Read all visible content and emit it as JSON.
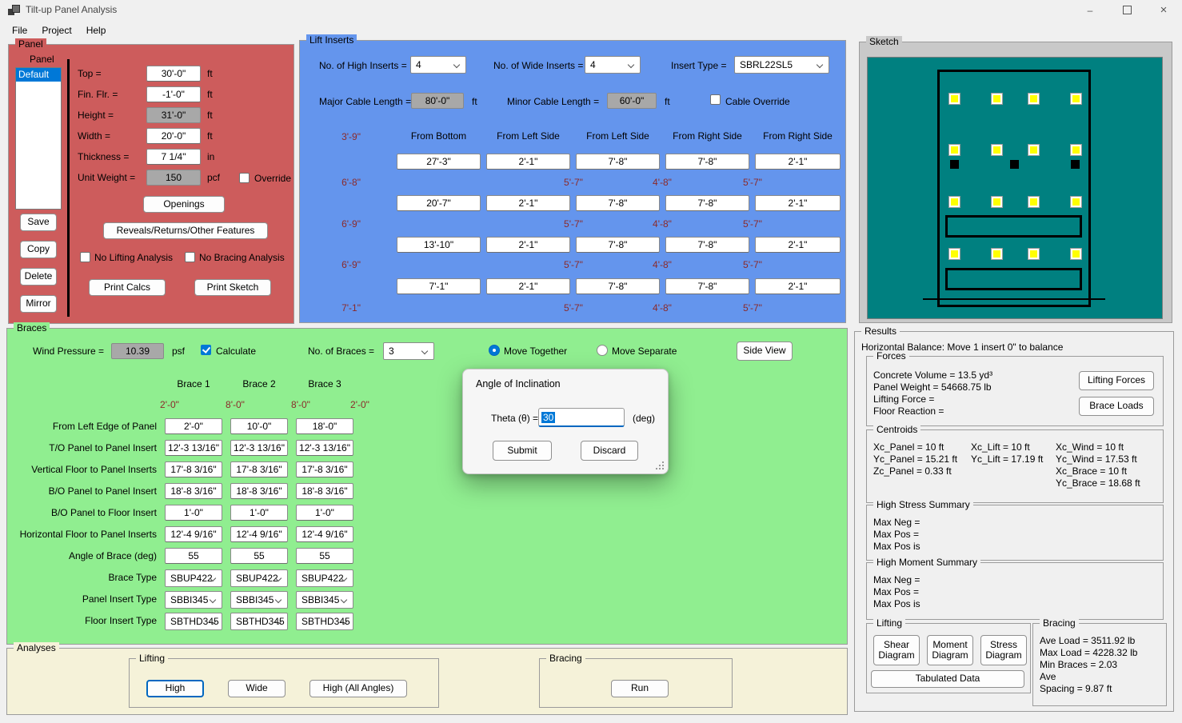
{
  "colors": {
    "panel_red": "#cd5c5c",
    "lift_blue": "#6495ed",
    "braces_green": "#90ee90",
    "sketch_teal": "#008080",
    "sketch_silver": "#c9c9c9",
    "analyses_beige": "#f5f2d9",
    "accent": "#0078d7",
    "dim_red": "#8b2a2a"
  },
  "window": {
    "title": "Tilt-up Panel Analysis",
    "menu": [
      "File",
      "Project",
      "Help"
    ]
  },
  "panel": {
    "group_label": "Panel",
    "list_header": "Panel",
    "list_selected": "Default",
    "rows": [
      {
        "label": "Top =",
        "value": "30'-0\"",
        "unit": "ft",
        "readonly": false
      },
      {
        "label": "Fin. Flr. =",
        "value": "-1'-0\"",
        "unit": "ft",
        "readonly": false
      },
      {
        "label": "Height =",
        "value": "31'-0\"",
        "unit": "ft",
        "readonly": true
      },
      {
        "label": "Width =",
        "value": "20'-0\"",
        "unit": "ft",
        "readonly": false
      },
      {
        "label": "Thickness =",
        "value": "7 1/4\"",
        "unit": "in",
        "readonly": false
      },
      {
        "label": "Unit Weight =",
        "value": "150",
        "unit": "pcf",
        "readonly": true
      }
    ],
    "override_label": "Override",
    "side_buttons": [
      "Save",
      "Copy",
      "Delete",
      "Mirror"
    ],
    "openings_button": "Openings",
    "reveals_button": "Reveals/Returns/Other Features",
    "no_lifting_label": "No Lifting Analysis",
    "no_bracing_label": "No Bracing Analysis",
    "print_calcs_button": "Print Calcs",
    "print_sketch_button": "Print Sketch"
  },
  "lift_inserts": {
    "group_label": "Lift Inserts",
    "high_inserts_label": "No. of High Inserts =",
    "high_inserts_value": "4",
    "wide_inserts_label": "No. of Wide Inserts =",
    "wide_inserts_value": "4",
    "insert_type_label": "Insert Type =",
    "insert_type_value": "SBRL22SL5",
    "major_cable_label": "Major Cable Length =",
    "major_cable_value": "80'-0\"",
    "major_cable_unit": "ft",
    "minor_cable_label": "Minor Cable Length =",
    "minor_cable_value": "60'-0\"",
    "minor_cable_unit": "ft",
    "cable_override_label": "Cable Override",
    "column_headers": [
      "From Bottom",
      "From Left Side",
      "From Left Side",
      "From Right Side",
      "From Right Side"
    ],
    "left_dims": [
      "3'-9\"",
      "6'-8\"",
      "6'-9\"",
      "6'-9\"",
      "7'-1\""
    ],
    "rows": [
      [
        "27'-3\"",
        "2'-1\"",
        "7'-8\"",
        "7'-8\"",
        "2'-1\""
      ],
      [
        "20'-7\"",
        "2'-1\"",
        "7'-8\"",
        "7'-8\"",
        "2'-1\""
      ],
      [
        "13'-10\"",
        "2'-1\"",
        "7'-8\"",
        "7'-8\"",
        "2'-1\""
      ],
      [
        "7'-1\"",
        "2'-1\"",
        "7'-8\"",
        "7'-8\"",
        "2'-1\""
      ]
    ],
    "gap_dims": [
      "5'-7\"",
      "4'-8\"",
      "5'-7\""
    ]
  },
  "sketch": {
    "group_label": "Sketch",
    "lift_insert_rows": 4,
    "lift_insert_cols": 4,
    "brace_inserts": 3,
    "openings": 2
  },
  "braces": {
    "group_label": "Braces",
    "wind_pressure_label": "Wind Pressure =",
    "wind_pressure_value": "10.39",
    "wind_pressure_unit": "psf",
    "calculate_label": "Calculate",
    "calculate_checked": true,
    "num_braces_label": "No. of Braces =",
    "num_braces_value": "3",
    "move_together_label": "Move Together",
    "move_separate_label": "Move Separate",
    "move_mode": "together",
    "side_view_button": "Side View",
    "column_headers": [
      "Brace 1",
      "Brace 2",
      "Brace 3"
    ],
    "edge_dims": [
      "2'-0\"",
      "8'-0\"",
      "8'-0\"",
      "2'-0\""
    ],
    "rows": [
      {
        "label": "From Left Edge of Panel",
        "type": "input",
        "values": [
          "2'-0\"",
          "10'-0\"",
          "18'-0\""
        ]
      },
      {
        "label": "T/O Panel to Panel Insert",
        "type": "input",
        "values": [
          "12'-3 13/16\"",
          "12'-3 13/16\"",
          "12'-3 13/16\""
        ]
      },
      {
        "label": "Vertical Floor to Panel Inserts",
        "type": "input",
        "values": [
          "17'-8 3/16\"",
          "17'-8 3/16\"",
          "17'-8 3/16\""
        ]
      },
      {
        "label": "B/O Panel to Panel Insert",
        "type": "input",
        "values": [
          "18'-8 3/16\"",
          "18'-8 3/16\"",
          "18'-8 3/16\""
        ]
      },
      {
        "label": "B/O Panel to Floor Insert",
        "type": "input",
        "values": [
          "1'-0\"",
          "1'-0\"",
          "1'-0\""
        ]
      },
      {
        "label": "Horizontal Floor to Panel Inserts",
        "type": "input",
        "values": [
          "12'-4 9/16\"",
          "12'-4 9/16\"",
          "12'-4 9/16\""
        ]
      },
      {
        "label": "Angle of Brace (deg)",
        "type": "input",
        "values": [
          "55",
          "55",
          "55"
        ]
      },
      {
        "label": "Brace Type",
        "type": "select",
        "values": [
          "SBUP422",
          "SBUP422",
          "SBUP422"
        ]
      },
      {
        "label": "Panel Insert Type",
        "type": "select",
        "values": [
          "SBBI345",
          "SBBI345",
          "SBBI345"
        ]
      },
      {
        "label": "Floor Insert Type",
        "type": "select",
        "values": [
          "SBTHD345",
          "SBTHD345",
          "SBTHD345"
        ]
      }
    ]
  },
  "dialog": {
    "title": "Angle of Inclination",
    "theta_label": "Theta (θ) =",
    "theta_value": "30",
    "unit_label": "(deg)",
    "submit_button": "Submit",
    "discard_button": "Discard"
  },
  "analyses": {
    "group_label": "Analyses",
    "lifting_group_label": "Lifting",
    "lifting_buttons": [
      "High",
      "Wide",
      "High (All Angles)"
    ],
    "bracing_group_label": "Bracing",
    "run_button": "Run"
  },
  "results": {
    "group_label": "Results",
    "balance_text": "Horizontal Balance: Move 1 insert 0\" to balance",
    "forces": {
      "group_label": "Forces",
      "lines": [
        "Concrete Volume = 13.5 yd³",
        "Panel Weight = 54668.75 lb",
        "Lifting Force =",
        "Floor Reaction ="
      ],
      "lifting_forces_button": "Lifting Forces",
      "brace_loads_button": "Brace Loads"
    },
    "centroids": {
      "group_label": "Centroids",
      "col1": [
        "Xc_Panel = 10 ft",
        "Yc_Panel = 15.21 ft",
        "Zc_Panel = 0.33 ft"
      ],
      "col2": [
        "Xc_Lift = 10 ft",
        "Yc_Lift = 17.19 ft"
      ],
      "col3": [
        "Xc_Wind = 10 ft",
        "Yc_Wind = 17.53 ft",
        "Xc_Brace = 10 ft",
        "Yc_Brace = 18.68 ft"
      ]
    },
    "high_stress": {
      "group_label": "High Stress Summary",
      "lines": [
        "Max Neg =",
        "Max Pos =",
        "Max Pos is"
      ]
    },
    "high_moment": {
      "group_label": "High Moment Summary",
      "lines": [
        "Max Neg =",
        "Max Pos =",
        "Max Pos is"
      ]
    },
    "lifting": {
      "group_label": "Lifting",
      "diagram_buttons": [
        "Shear Diagram",
        "Moment Diagram",
        "Stress Diagram"
      ],
      "tabulated_button": "Tabulated Data"
    },
    "bracing": {
      "group_label": "Bracing",
      "lines": [
        "Ave Load = 3511.92 lb",
        "Max Load = 4228.32 lb",
        "Min Braces = 2.03",
        "Ave",
        "Spacing = 9.87 ft"
      ]
    }
  }
}
